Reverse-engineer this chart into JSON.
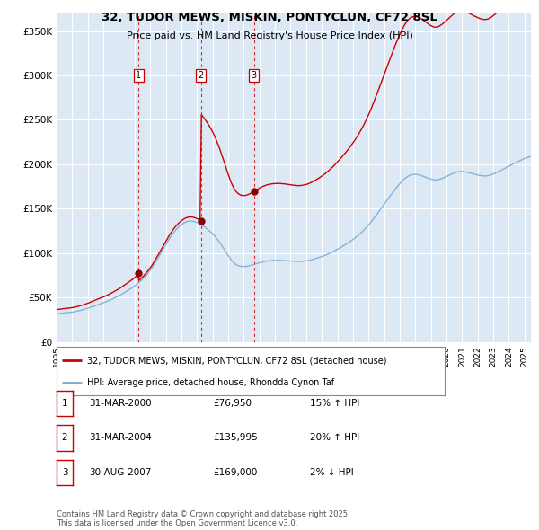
{
  "title": "32, TUDOR MEWS, MISKIN, PONTYCLUN, CF72 8SL",
  "subtitle": "Price paid vs. HM Land Registry's House Price Index (HPI)",
  "ylim": [
    0,
    370000
  ],
  "yticks": [
    0,
    50000,
    100000,
    150000,
    200000,
    250000,
    300000,
    350000
  ],
  "ytick_labels": [
    "£0",
    "£50K",
    "£100K",
    "£150K",
    "£200K",
    "£250K",
    "£300K",
    "£350K"
  ],
  "bg_color": "#dce9f5",
  "grid_color": "#ffffff",
  "sale_dates": [
    "2000-03-31",
    "2004-03-31",
    "2007-08-30"
  ],
  "sale_prices": [
    76950,
    135995,
    169000
  ],
  "sale_labels": [
    "1",
    "2",
    "3"
  ],
  "legend_label_red": "32, TUDOR MEWS, MISKIN, PONTYCLUN, CF72 8SL (detached house)",
  "legend_label_blue": "HPI: Average price, detached house, Rhondda Cynon Taf",
  "footer": "Contains HM Land Registry data © Crown copyright and database right 2025.\nThis data is licensed under the Open Government Licence v3.0.",
  "table_rows": [
    {
      "num": "1",
      "date": "31-MAR-2000",
      "price": "£76,950",
      "hpi": "15% ↑ HPI"
    },
    {
      "num": "2",
      "date": "31-MAR-2004",
      "price": "£135,995",
      "hpi": "20% ↑ HPI"
    },
    {
      "num": "3",
      "date": "30-AUG-2007",
      "price": "£169,000",
      "hpi": "2% ↓ HPI"
    }
  ],
  "red_color": "#cc0000",
  "blue_color": "#7aadd4",
  "marker_color": "#8b0000",
  "hpi_monthly": [
    55.0,
    54.5,
    54.7,
    55.2,
    55.5,
    55.8,
    56.0,
    56.3,
    56.5,
    56.8,
    57.0,
    57.3,
    57.6,
    58.0,
    58.5,
    59.0,
    59.6,
    60.2,
    60.8,
    61.5,
    62.2,
    63.0,
    63.8,
    64.5,
    65.3,
    66.1,
    67.0,
    67.9,
    68.8,
    69.8,
    70.7,
    71.6,
    72.5,
    73.4,
    74.2,
    75.0,
    75.9,
    76.8,
    77.8,
    78.8,
    79.9,
    81.0,
    82.2,
    83.4,
    84.6,
    85.9,
    87.2,
    88.5,
    89.8,
    91.2,
    92.6,
    94.0,
    95.5,
    97.0,
    98.6,
    100.2,
    101.8,
    103.4,
    105.1,
    106.8,
    108.7,
    110.6,
    112.7,
    114.8,
    117.1,
    119.4,
    121.9,
    124.5,
    127.3,
    130.2,
    133.3,
    136.5,
    139.9,
    143.5,
    147.2,
    151.1,
    155.1,
    159.3,
    163.6,
    168.0,
    172.4,
    176.8,
    181.2,
    185.5,
    189.7,
    193.8,
    197.8,
    201.6,
    205.3,
    208.8,
    212.1,
    215.2,
    218.1,
    220.7,
    223.1,
    225.3,
    227.2,
    228.9,
    230.3,
    231.5,
    232.4,
    233.0,
    233.3,
    233.4,
    233.2,
    232.7,
    232.0,
    231.1,
    230.0,
    228.7,
    227.3,
    225.8,
    224.2,
    222.5,
    220.7,
    218.8,
    216.8,
    214.7,
    212.5,
    210.2,
    207.7,
    205.0,
    202.1,
    199.0,
    195.7,
    192.2,
    188.5,
    184.7,
    180.8,
    176.8,
    172.8,
    168.8,
    165.0,
    161.4,
    158.2,
    155.3,
    152.8,
    150.7,
    149.0,
    147.7,
    146.7,
    146.0,
    145.6,
    145.4,
    145.4,
    145.6,
    145.9,
    146.4,
    147.0,
    147.7,
    148.4,
    149.2,
    150.0,
    150.8,
    151.6,
    152.4,
    153.1,
    153.8,
    154.4,
    154.9,
    155.4,
    155.8,
    156.2,
    156.5,
    156.8,
    157.0,
    157.2,
    157.3,
    157.4,
    157.5,
    157.5,
    157.5,
    157.4,
    157.3,
    157.2,
    157.0,
    156.8,
    156.6,
    156.4,
    156.2,
    156.0,
    155.8,
    155.6,
    155.5,
    155.4,
    155.3,
    155.3,
    155.4,
    155.5,
    155.7,
    155.9,
    156.2,
    156.6,
    157.0,
    157.5,
    158.1,
    158.7,
    159.4,
    160.1,
    160.9,
    161.7,
    162.5,
    163.3,
    164.2,
    165.1,
    166.0,
    167.0,
    168.0,
    169.1,
    170.2,
    171.4,
    172.6,
    173.9,
    175.2,
    176.6,
    178.0,
    179.4,
    180.8,
    182.2,
    183.6,
    185.1,
    186.6,
    188.2,
    189.8,
    191.5,
    193.2,
    194.9,
    196.7,
    198.5,
    200.4,
    202.4,
    204.4,
    206.5,
    208.7,
    211.0,
    213.4,
    215.9,
    218.5,
    221.2,
    224.0,
    226.9,
    229.9,
    233.0,
    236.2,
    239.5,
    242.8,
    246.2,
    249.6,
    253.1,
    256.6,
    260.1,
    263.6,
    267.1,
    270.6,
    274.1,
    277.5,
    281.0,
    284.4,
    287.8,
    291.2,
    294.5,
    297.7,
    300.8,
    303.8,
    306.7,
    309.4,
    311.9,
    314.3,
    316.4,
    318.3,
    319.9,
    321.2,
    322.2,
    322.9,
    323.3,
    323.5,
    323.5,
    323.2,
    322.7,
    322.1,
    321.3,
    320.4,
    319.5,
    318.5,
    317.5,
    316.5,
    315.6,
    314.7,
    314.0,
    313.4,
    313.0,
    312.8,
    312.9,
    313.2,
    313.8,
    314.6,
    315.5,
    316.5,
    317.6,
    318.8,
    320.0,
    321.2,
    322.4,
    323.6,
    324.7,
    325.8,
    326.7,
    327.5,
    328.2,
    328.7,
    329.0,
    329.1,
    329.0,
    328.8,
    328.4,
    327.9,
    327.3,
    326.6,
    325.9,
    325.2,
    324.5,
    323.8,
    323.2,
    322.6,
    322.0,
    321.5,
    321.1,
    320.7,
    320.5,
    320.4,
    320.5,
    320.8,
    321.3,
    321.9,
    322.7,
    323.7,
    324.7,
    325.8,
    327.0,
    328.2,
    329.4,
    330.7,
    332.0,
    333.3,
    334.6,
    335.9,
    337.2,
    338.5,
    339.8,
    341.1,
    342.4,
    343.7,
    345.0,
    346.3,
    347.6,
    348.9,
    350.1,
    351.3,
    352.4,
    353.5,
    354.5,
    355.5,
    356.4,
    357.2,
    357.9,
    358.5,
    358.9,
    359.2,
    359.3,
    359.2,
    358.9,
    358.4,
    357.8,
    357.0,
    356.1,
    355.1,
    354.0
  ],
  "start_year": 1995,
  "start_month": 1
}
